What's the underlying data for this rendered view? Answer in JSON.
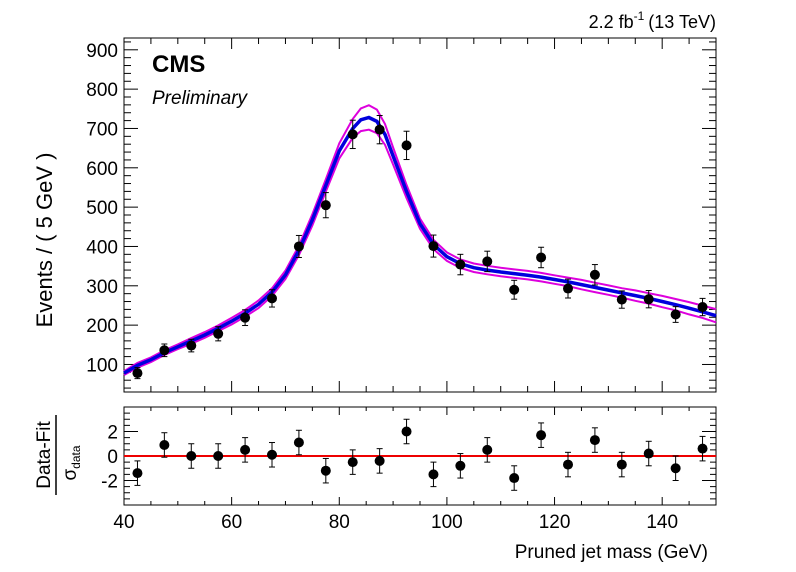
{
  "chart_data": {
    "type": "scatter",
    "lumi_text": {
      "value": "2.2 fb",
      "superscript": "-1",
      "energy": "(13 TeV)"
    },
    "experiment": "CMS",
    "status": "Preliminary",
    "xlabel": "Pruned jet mass (GeV)",
    "xlim": [
      40,
      150
    ],
    "x_ticks": [
      40,
      60,
      80,
      100,
      120,
      140
    ],
    "colors": {
      "data": "#000000",
      "fit": "#0000dd",
      "uncertainty": "#dd00dd",
      "zero_line": "#ee0000"
    },
    "top_panel": {
      "ylabel": "Events / ( 5 GeV )",
      "ylim": [
        30,
        930
      ],
      "y_ticks": [
        100,
        200,
        300,
        400,
        500,
        600,
        700,
        800,
        900
      ],
      "data_points": {
        "x": [
          42.5,
          47.5,
          52.5,
          57.5,
          62.5,
          67.5,
          72.5,
          77.5,
          82.5,
          87.5,
          92.5,
          97.5,
          102.5,
          107.5,
          112.5,
          117.5,
          122.5,
          127.5,
          132.5,
          137.5,
          142.5,
          147.5
        ],
        "y": [
          78,
          136,
          148,
          178,
          219,
          268,
          400,
          505,
          685,
          697,
          657,
          401,
          354,
          362,
          290,
          372,
          293,
          328,
          265,
          266,
          227,
          246
        ],
        "err": [
          14,
          16,
          16,
          18,
          20,
          22,
          28,
          32,
          36,
          36,
          36,
          28,
          26,
          26,
          24,
          26,
          24,
          26,
          22,
          22,
          20,
          22
        ]
      },
      "fit_curve": {
        "x": [
          40,
          42.5,
          45,
          47.5,
          50,
          52.5,
          55,
          57.5,
          60,
          62.5,
          65,
          67.5,
          70,
          72.5,
          75,
          77.5,
          80,
          82.5,
          84,
          85.5,
          87,
          88.5,
          90,
          92.5,
          95,
          97.5,
          100,
          102.5,
          105,
          107.5,
          110,
          112.5,
          115,
          117.5,
          120,
          122.5,
          125,
          127.5,
          130,
          132.5,
          135,
          137.5,
          140,
          142.5,
          145,
          147.5,
          150
        ],
        "y": [
          78,
          98,
          112,
          130,
          145,
          160,
          175,
          192,
          210,
          230,
          253,
          284,
          328,
          390,
          468,
          555,
          643,
          700,
          722,
          728,
          718,
          685,
          630,
          540,
          458,
          405,
          374,
          356,
          346,
          340,
          335,
          331,
          327,
          322,
          316,
          310,
          303,
          296,
          289,
          282,
          275,
          268,
          260,
          252,
          243,
          234,
          224
        ],
        "band": [
          4,
          5,
          5,
          5,
          5,
          6,
          6,
          6,
          7,
          7,
          8,
          8,
          9,
          10,
          12,
          13,
          16,
          20,
          24,
          26,
          25,
          22,
          18,
          14,
          11,
          10,
          9,
          9,
          9,
          9,
          9,
          9,
          9,
          9,
          9,
          9,
          10,
          10,
          10,
          10,
          11,
          11,
          12,
          12,
          13,
          13,
          14
        ]
      }
    },
    "bottom_panel": {
      "ylabel_main": "Data-Fit",
      "ylabel_sigma": "σ",
      "ylabel_sub": "data",
      "ylim": [
        -4,
        4
      ],
      "y_ticks": [
        -2,
        0,
        2
      ],
      "y_tick_labels": [
        "-2",
        "0",
        "2"
      ],
      "pull_points": {
        "x": [
          42.5,
          47.5,
          52.5,
          57.5,
          62.5,
          67.5,
          72.5,
          77.5,
          82.5,
          87.5,
          92.5,
          97.5,
          102.5,
          107.5,
          112.5,
          117.5,
          122.5,
          127.5,
          132.5,
          137.5,
          142.5,
          147.5
        ],
        "y": [
          -1.4,
          0.9,
          0.0,
          0.0,
          0.5,
          0.1,
          1.1,
          -1.2,
          -0.5,
          -0.4,
          2.0,
          -1.5,
          -0.8,
          0.5,
          -1.8,
          1.7,
          -0.7,
          1.3,
          -0.7,
          0.2,
          -1.0,
          0.6
        ],
        "err": [
          1,
          1,
          1,
          1,
          1,
          1,
          1,
          1,
          1,
          1,
          1,
          1,
          1,
          1,
          1,
          1,
          1,
          1,
          1,
          1,
          1,
          1
        ]
      }
    }
  }
}
